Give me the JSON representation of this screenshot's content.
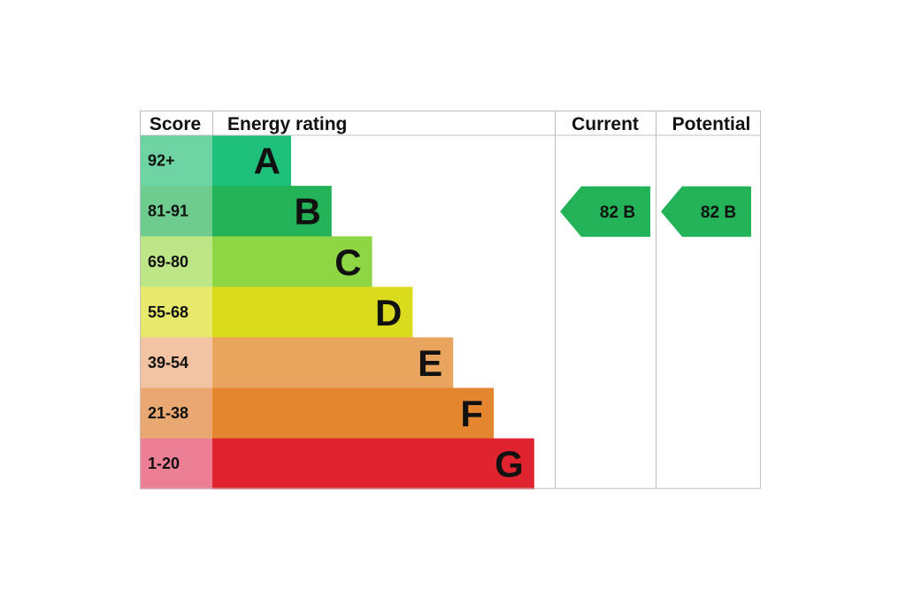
{
  "chart_data": {
    "type": "table",
    "headers": {
      "score": "Score",
      "rating": "Energy rating",
      "current": "Current",
      "potential": "Potential"
    },
    "bands": [
      {
        "score": "92+",
        "letter": "A",
        "bar_color": "#1fc07a",
        "score_color": "#6ed3a3"
      },
      {
        "score": "81-91",
        "letter": "B",
        "bar_color": "#23b257",
        "score_color": "#6fcc8f"
      },
      {
        "score": "69-80",
        "letter": "C",
        "bar_color": "#8fd644",
        "score_color": "#bde787"
      },
      {
        "score": "55-68",
        "letter": "D",
        "bar_color": "#d9db1c",
        "score_color": "#e8e86c"
      },
      {
        "score": "39-54",
        "letter": "E",
        "bar_color": "#e9a55d",
        "score_color": "#f1c3a3"
      },
      {
        "score": "21-38",
        "letter": "F",
        "bar_color": "#e48630",
        "score_color": "#e9a871"
      },
      {
        "score": "1-20",
        "letter": "G",
        "bar_color": "#e0242f",
        "score_color": "#ec7f93"
      }
    ],
    "current": {
      "value": "82",
      "letter": "B",
      "color": "#23b257"
    },
    "potential": {
      "value": "82",
      "letter": "B",
      "color": "#23b257"
    },
    "grid_color": "#bfbfbf"
  }
}
